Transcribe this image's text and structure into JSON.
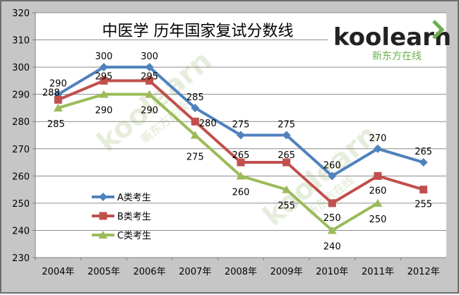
{
  "chart_data": {
    "type": "line",
    "title": "中医学 历年国家复试分数线",
    "categories": [
      "2004年",
      "2005年",
      "2006年",
      "2007年",
      "2008年",
      "2009年",
      "2010年",
      "2011年",
      "2012年"
    ],
    "series": [
      {
        "name": "A类考生",
        "color": "#4f81bd",
        "marker": "diamond",
        "values": [
          290,
          300,
          300,
          285,
          275,
          275,
          260,
          270,
          265
        ]
      },
      {
        "name": "B类考生",
        "color": "#c0504d",
        "marker": "square",
        "values": [
          288,
          295,
          295,
          280,
          265,
          265,
          250,
          260,
          255
        ]
      },
      {
        "name": "C类考生",
        "color": "#9bbb59",
        "marker": "triangle",
        "values": [
          285,
          290,
          290,
          275,
          260,
          255,
          240,
          250,
          null
        ]
      }
    ],
    "ylim": [
      230,
      320
    ],
    "yticks": [
      230,
      240,
      250,
      260,
      270,
      280,
      290,
      300,
      310,
      320
    ],
    "grid": true,
    "legend_position": "left"
  },
  "logo": {
    "text": "koolearn",
    "tagline": "新东方在线",
    "brand_green": "#6ab04c"
  },
  "watermark": {
    "text": "koolearn",
    "tagline": "新东方在线"
  }
}
